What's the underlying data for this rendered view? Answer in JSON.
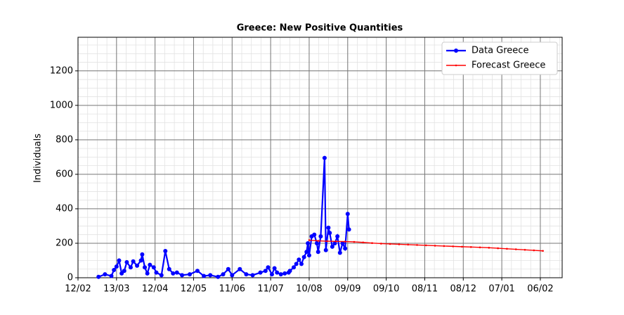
{
  "chart_data": {
    "type": "line",
    "title": "Greece: New Positive Quantities",
    "y_label": "Individuals",
    "xlim": [
      0,
      377
    ],
    "xticks": [
      {
        "value": 0,
        "label": "12/02"
      },
      {
        "value": 30,
        "label": "13/03"
      },
      {
        "value": 60,
        "label": "12/04"
      },
      {
        "value": 90,
        "label": "12/05"
      },
      {
        "value": 120,
        "label": "11/06"
      },
      {
        "value": 150,
        "label": "11/07"
      },
      {
        "value": 180,
        "label": "10/08"
      },
      {
        "value": 210,
        "label": "09/09"
      },
      {
        "value": 240,
        "label": "09/10"
      },
      {
        "value": 270,
        "label": "08/11"
      },
      {
        "value": 300,
        "label": "08/12"
      },
      {
        "value": 330,
        "label": "07/01"
      },
      {
        "value": 360,
        "label": "06/02"
      }
    ],
    "ylim": [
      0,
      1395
    ],
    "yticks": [
      0,
      200,
      400,
      600,
      800,
      1000,
      1200
    ],
    "grid": true,
    "legend": "upper right",
    "series": [
      {
        "name": "Data Greece",
        "color": "#0000ff",
        "x": [
          16,
          21,
          26,
          28,
          30,
          32,
          34,
          36,
          38,
          41,
          43,
          46,
          49,
          50,
          52,
          54,
          56,
          59,
          61,
          65,
          68,
          71,
          74,
          77,
          81,
          87,
          93,
          98,
          103,
          109,
          113,
          117,
          120,
          126,
          131,
          136,
          142,
          146,
          148,
          151,
          153,
          155,
          158,
          161,
          164,
          165,
          168,
          170,
          172,
          174,
          176,
          178,
          179,
          180,
          182,
          184,
          186,
          187,
          189,
          192,
          193,
          195,
          196,
          198,
          200,
          202,
          204,
          206,
          208,
          210,
          211
        ],
        "values": [
          5,
          20,
          10,
          45,
          65,
          100,
          25,
          40,
          90,
          60,
          95,
          70,
          100,
          135,
          60,
          25,
          75,
          60,
          30,
          15,
          155,
          50,
          25,
          30,
          15,
          20,
          40,
          10,
          15,
          5,
          20,
          50,
          15,
          50,
          20,
          15,
          30,
          40,
          60,
          20,
          55,
          30,
          20,
          25,
          30,
          40,
          60,
          80,
          105,
          80,
          120,
          150,
          200,
          130,
          240,
          250,
          200,
          150,
          240,
          695,
          160,
          290,
          260,
          180,
          200,
          240,
          145,
          200,
          170,
          370,
          280
        ]
      },
      {
        "name": "Forecast Greece",
        "color": "#ff0000",
        "x": [
          180,
          187,
          194,
          201,
          208,
          215,
          222,
          229,
          236,
          243,
          250,
          257,
          264,
          271,
          278,
          285,
          292,
          299,
          306,
          313,
          320,
          327,
          334,
          341,
          348,
          355,
          362
        ],
        "values": [
          218,
          214,
          212,
          211,
          210,
          208,
          205,
          201,
          198,
          196,
          194,
          192,
          190,
          188,
          186,
          184,
          182,
          180,
          178,
          176,
          174,
          171,
          168,
          165,
          162,
          159,
          156
        ]
      }
    ]
  }
}
